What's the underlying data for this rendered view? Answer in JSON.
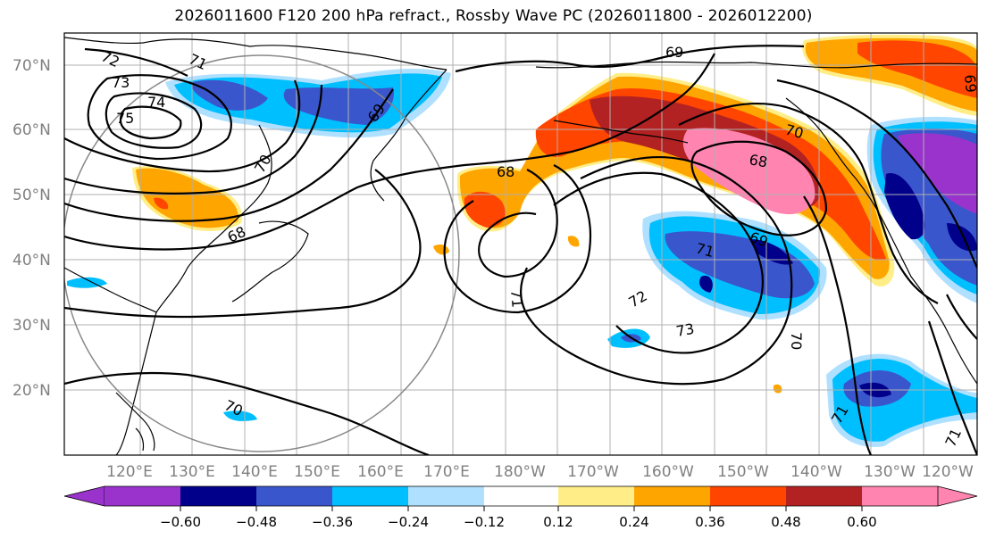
{
  "title": "2026011600 F120 200 hPa refract., Rossby Wave PC (2026011800 - 2026012200)",
  "map": {
    "lon_labels": [
      "120°E",
      "130°E",
      "140°E",
      "150°E",
      "160°E",
      "170°E",
      "180°W",
      "170°W",
      "160°W",
      "150°W",
      "140°W",
      "130°W",
      "120°W"
    ],
    "lat_labels": [
      "20°N",
      "30°N",
      "40°N",
      "50°N",
      "60°N",
      "70°N"
    ],
    "contour_labels": [
      "72",
      "73",
      "74",
      "75",
      "71",
      "70",
      "69",
      "68",
      "68",
      "69",
      "70",
      "68",
      "69",
      "71",
      "71",
      "72",
      "73",
      "70",
      "71",
      "71",
      "70",
      "69"
    ]
  },
  "colorbar": {
    "ticks": [
      "−0.60",
      "−0.48",
      "−0.36",
      "−0.24",
      "−0.12",
      "0.12",
      "0.24",
      "0.36",
      "0.48",
      "0.60"
    ],
    "colors": [
      "#9933cc",
      "#00008b",
      "#3a56cc",
      "#00bfff",
      "#b0e0ff",
      "#ffffff",
      "#ffee88",
      "#ffa500",
      "#ff4500",
      "#b22222",
      "#ff85b0"
    ]
  }
}
